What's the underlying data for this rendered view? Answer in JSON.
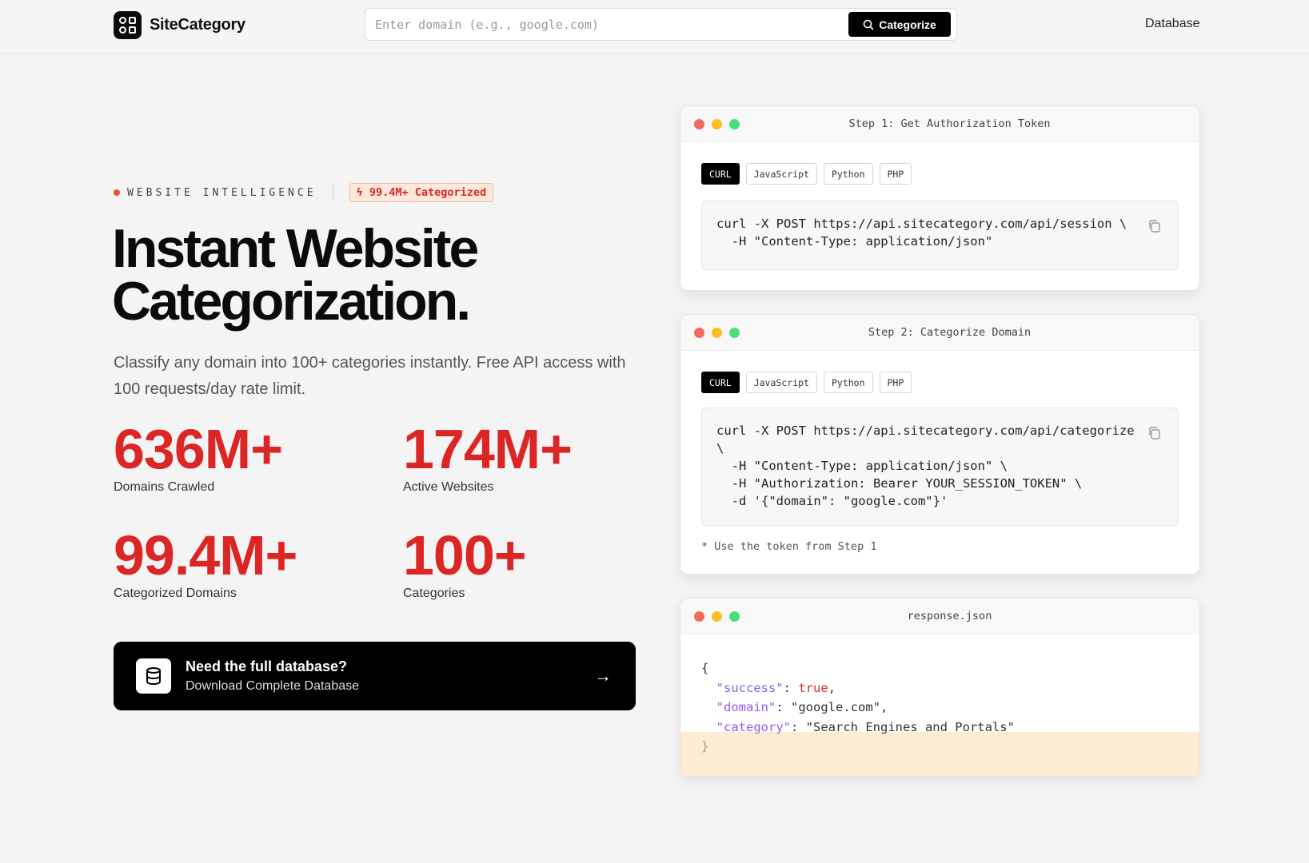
{
  "header": {
    "brand": "SiteCategory",
    "search_placeholder": "Enter domain (e.g., google.com)",
    "categorize_label": "Categorize",
    "nav_database": "Database"
  },
  "hero": {
    "eyebrow": "WEBSITE INTELLIGENCE",
    "badge": "99.4M+ Categorized",
    "title_line1": "Instant Website",
    "title_line2": "Categorization.",
    "lead": "Classify any domain into 100+ categories instantly. Free API access with 100 requests/day rate limit."
  },
  "stats": [
    {
      "value": "636M+",
      "label": "Domains Crawled"
    },
    {
      "value": "174M+",
      "label": "Active Websites"
    },
    {
      "value": "99.4M+",
      "label": "Categorized Domains"
    },
    {
      "value": "100+",
      "label": "Categories"
    }
  ],
  "cta": {
    "title": "Need the full database?",
    "subtitle": "Download Complete Database"
  },
  "tabs": [
    "CURL",
    "JavaScript",
    "Python",
    "PHP"
  ],
  "step1": {
    "title": "Step 1: Get Authorization Token",
    "code": "curl -X POST https://api.sitecategory.com/api/session \\\n  -H \"Content-Type: application/json\""
  },
  "step2": {
    "title": "Step 2: Categorize Domain",
    "code": "curl -X POST https://api.sitecategory.com/api/categorize\n\\\n  -H \"Content-Type: application/json\" \\\n  -H \"Authorization: Bearer YOUR_SESSION_TOKEN\" \\\n  -d '{\"domain\": \"google.com\"}'",
    "note": "* Use the token from Step 1"
  },
  "response": {
    "title": "response.json",
    "open": "{",
    "close": "}",
    "fields": [
      {
        "key": "\"success\"",
        "value": "true"
      },
      {
        "key": "\"domain\"",
        "value": "\"google.com\""
      },
      {
        "key": "\"category\"",
        "value": "\"Search Engines and Portals\""
      }
    ]
  },
  "colors": {
    "accent": "#dc2626",
    "key": "#8b5cf6",
    "highlight": "#feebd4"
  }
}
